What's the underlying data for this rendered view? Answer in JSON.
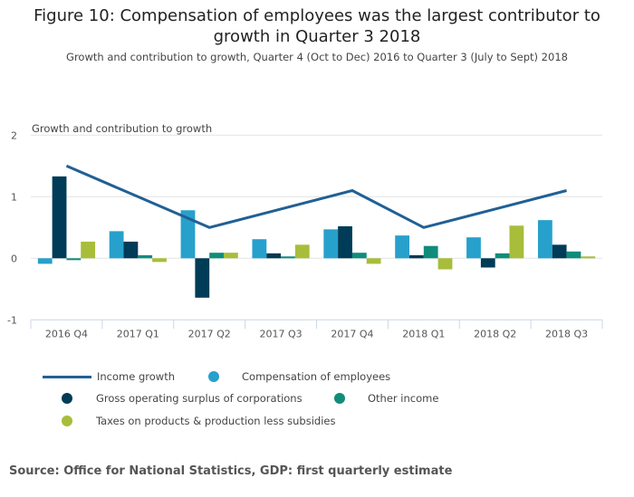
{
  "header": {
    "title": "Figure 10: Compensation of employees was the largest contributor to growth in Quarter 3 2018",
    "title_line1": "Figure 10: Compensation of employees was the largest contributor to",
    "title_line2": "growth in Quarter 3 2018",
    "subtitle": "Growth and contribution to growth, Quarter 4 (Oct to Dec) 2016 to Quarter 3 (July to Sept) 2018"
  },
  "source": "Source: Office for National Statistics, GDP: first quarterly estimate",
  "chart_data": {
    "type": "bar",
    "title": "Figure 10: Compensation of employees was the largest contributor to growth in Quarter 3 2018",
    "subtitle": "Growth and contribution to growth, Quarter 4 (Oct to Dec) 2016 to Quarter 3 (July to Sept) 2018",
    "xlabel": "",
    "ylabel": "Growth and contribution to growth",
    "ylim": [
      -1,
      2
    ],
    "yticks": [
      "2",
      "1",
      "0",
      "-1"
    ],
    "ytick_values": [
      2,
      1,
      0,
      -1
    ],
    "grid": true,
    "legend_position": "bottom",
    "categories": [
      "2016 Q4",
      "2017 Q1",
      "2017 Q2",
      "2017 Q3",
      "2017 Q4",
      "2018 Q1",
      "2018 Q2",
      "2018 Q3"
    ],
    "series": [
      {
        "name": "Compensation of employees",
        "kind": "bar",
        "color": "#27a0cc",
        "values": [
          -0.09,
          0.44,
          0.78,
          0.31,
          0.47,
          0.37,
          0.34,
          0.62
        ]
      },
      {
        "name": "Gross operating surplus of corporations",
        "kind": "bar",
        "color": "#003c57",
        "values": [
          1.33,
          0.27,
          -0.64,
          0.08,
          0.52,
          0.05,
          -0.15,
          0.22
        ]
      },
      {
        "name": "Other income",
        "kind": "bar",
        "color": "#118c7b",
        "values": [
          -0.03,
          0.05,
          0.09,
          0.03,
          0.09,
          0.2,
          0.08,
          0.11
        ]
      },
      {
        "name": "Taxes on products & production less subsidies",
        "kind": "bar",
        "color": "#a8bd3a",
        "values": [
          0.27,
          -0.06,
          0.09,
          0.22,
          -0.09,
          -0.18,
          0.53,
          0.03
        ]
      },
      {
        "name": "Income growth",
        "kind": "line",
        "color": "#206095",
        "values": [
          1.5,
          1.0,
          0.5,
          0.8,
          1.1,
          0.5,
          0.8,
          1.1
        ]
      }
    ]
  },
  "legend": [
    {
      "label": "Income growth",
      "type": "line",
      "color": "#206095"
    },
    {
      "label": "Compensation of employees",
      "type": "dot",
      "color": "#27a0cc"
    },
    {
      "label": "Gross operating surplus of corporations",
      "type": "dot",
      "color": "#003c57"
    },
    {
      "label": "Other income",
      "type": "dot",
      "color": "#118c7b"
    },
    {
      "label": "Taxes on products & production less subsidies",
      "type": "dot",
      "color": "#a8bd3a"
    }
  ]
}
